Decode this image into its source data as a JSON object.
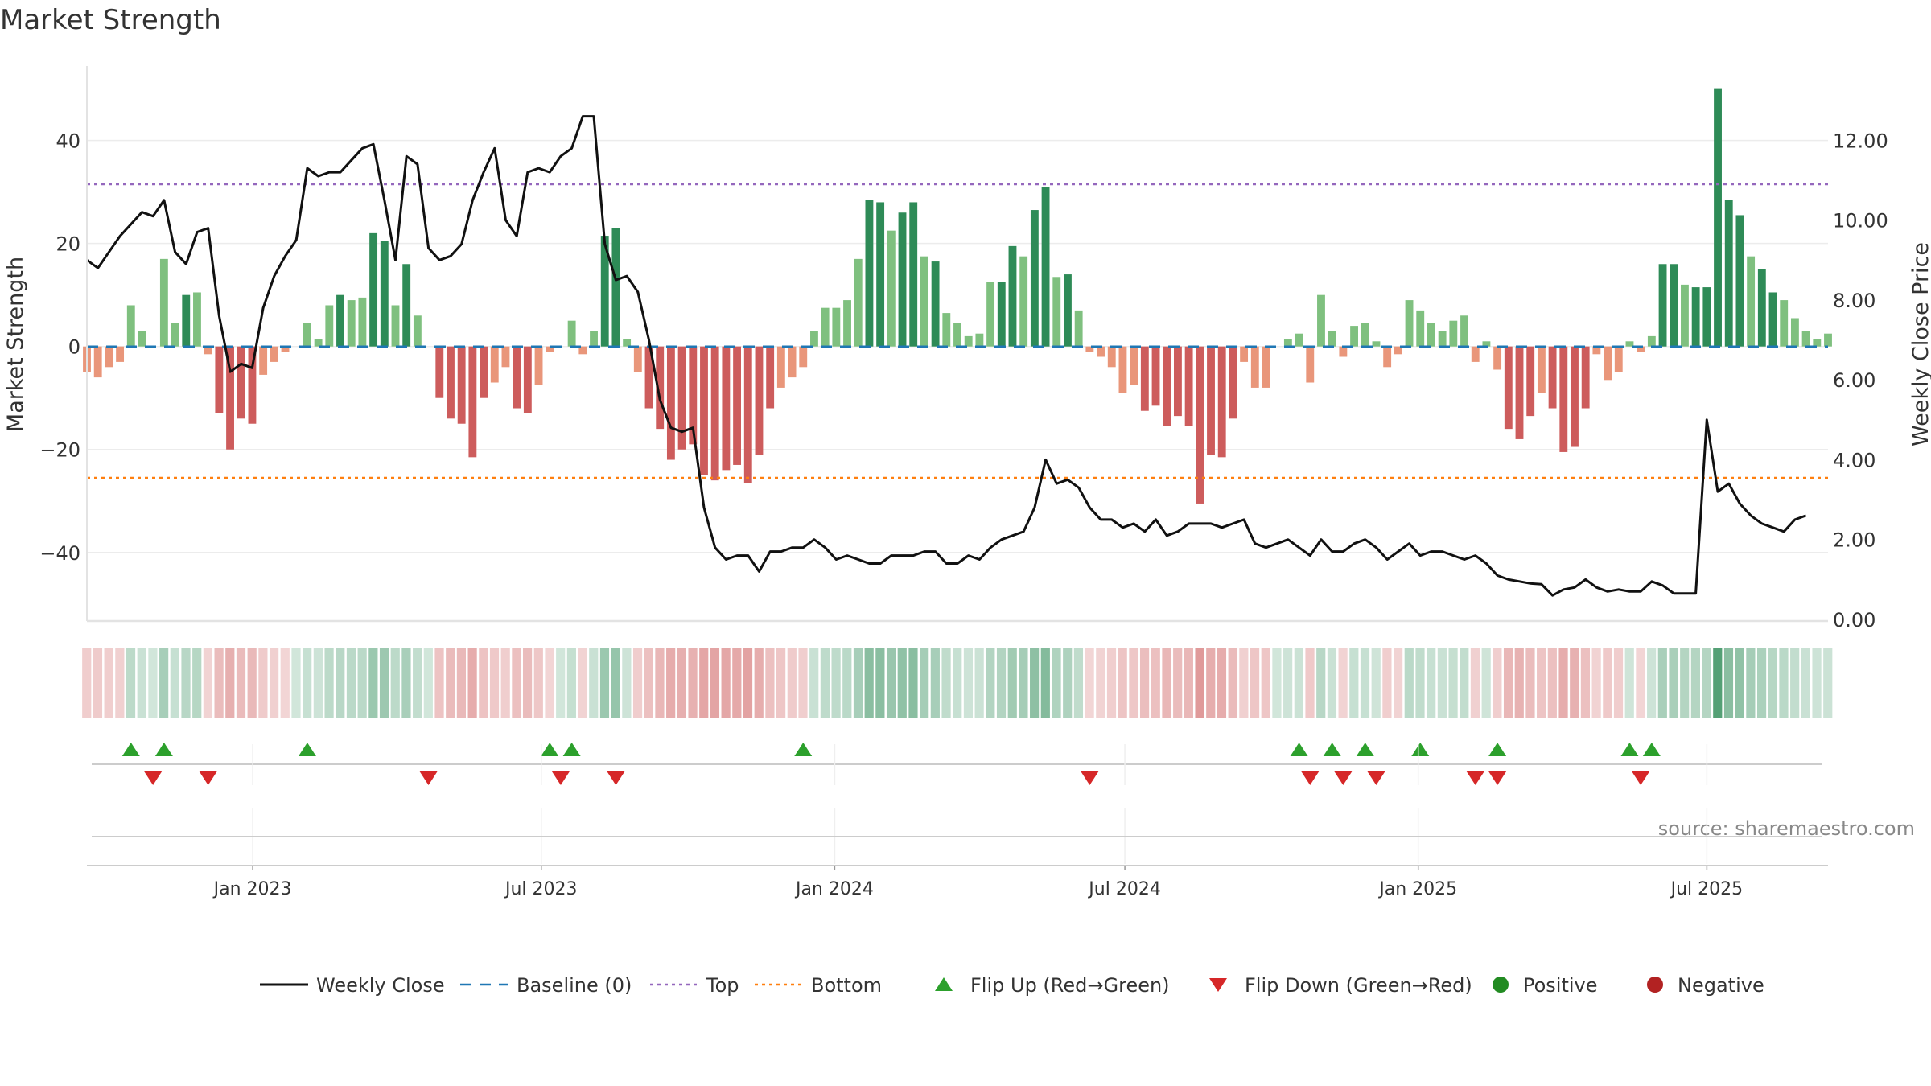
{
  "chart_data": {
    "type": "bar",
    "title": "Market Strength",
    "ylabel": "Market Strength",
    "y2label": "Weekly Close Price",
    "ylim": [
      -53,
      54
    ],
    "y2lim": [
      0,
      13.8
    ],
    "yticks": [
      -40,
      -20,
      0,
      20,
      40
    ],
    "yticklabels": [
      "−40",
      "−20",
      "0",
      "20",
      "40"
    ],
    "y2ticks": [
      0,
      2,
      4,
      6,
      8,
      10,
      12
    ],
    "y2ticklabels": [
      "0.00",
      "2.00",
      "4.00",
      "6.00",
      "8.00",
      "10.00",
      "12.00"
    ],
    "x_start": "2022-09-19",
    "x_end": "2025-09-15",
    "xticks": [
      "2023-01-01",
      "2023-07-01",
      "2024-01-01",
      "2024-07-01",
      "2025-01-01",
      "2025-07-01"
    ],
    "xticklabels": [
      "Jan 2023",
      "Jul 2023",
      "Jan 2024",
      "Jul 2024",
      "Jan 2025",
      "Jul 2025"
    ],
    "top_level": 31.5,
    "bottom_level": -25.5,
    "baseline": 0,
    "grid": true,
    "legend_placement": "bottom-center",
    "annotation": "source: sharemaestro.com",
    "colors": {
      "strong_pos": "#2e8b57",
      "weak_pos": "#7fc07f",
      "strong_neg": "#cd5c5c",
      "weak_neg": "#e9967a",
      "close_line": "#111111",
      "baseline": "#1f77b4",
      "top": "#9467bd",
      "bottom": "#ff7f0e",
      "flip_up": "#2ca02c",
      "flip_down": "#d62728",
      "positive": "#228b22",
      "negative": "#b22222"
    },
    "legend": [
      {
        "label": "Weekly Close",
        "kind": "line",
        "color": "#111111"
      },
      {
        "label": "Baseline (0)",
        "kind": "dash",
        "color": "#1f77b4"
      },
      {
        "label": "Top",
        "kind": "dot",
        "color": "#9467bd"
      },
      {
        "label": "Bottom",
        "kind": "dot",
        "color": "#ff7f0e"
      },
      {
        "label": "Flip Up (Red→Green)",
        "kind": "tri-up",
        "color": "#2ca02c"
      },
      {
        "label": "Flip Down (Green→Red)",
        "kind": "tri-down",
        "color": "#d62728"
      },
      {
        "label": "Positive",
        "kind": "circle",
        "color": "#228b22"
      },
      {
        "label": "Negative",
        "kind": "circle",
        "color": "#b22222"
      }
    ],
    "strength": [
      -5,
      -6,
      -4,
      -3,
      8,
      3,
      0,
      17,
      4.5,
      10,
      10.5,
      -1.5,
      -13,
      -20,
      -14,
      -15,
      -5.5,
      -3,
      -1,
      0,
      4.5,
      1.5,
      8,
      10,
      9,
      9.5,
      22,
      20.5,
      8,
      16,
      6,
      0,
      -10,
      -14,
      -15,
      -21.5,
      -10,
      -7,
      -4,
      -12,
      -13,
      -7.5,
      -1,
      0,
      5,
      -1.5,
      3,
      21.5,
      23,
      1.5,
      -5,
      -12,
      -16,
      -22,
      -20,
      -19,
      -25,
      -26,
      -24,
      -23,
      -26.5,
      -21,
      -12,
      -8,
      -6,
      -4,
      3,
      7.5,
      7.5,
      9,
      17,
      28.5,
      28,
      22.5,
      26,
      28,
      17.5,
      16.5,
      6.5,
      4.5,
      2,
      2.5,
      12.5,
      12.5,
      19.5,
      17.5,
      26.5,
      31,
      13.5,
      14,
      7,
      -1,
      -2,
      -4,
      -9,
      -7.5,
      -12.5,
      -11.5,
      -15.5,
      -13.5,
      -15.5,
      -30.5,
      -21,
      -21.5,
      -14,
      -3,
      -8,
      -8,
      0,
      1.5,
      2.5,
      -7,
      10,
      3,
      -2,
      4,
      4.5,
      1,
      -4,
      -1.5,
      9,
      7,
      4.5,
      3,
      5,
      6,
      -3,
      1,
      -4.5,
      -16,
      -18,
      -13.5,
      -9,
      -12,
      -20.5,
      -19.5,
      -12,
      -1.5,
      -6.5,
      -5,
      1,
      -1,
      2,
      16,
      16,
      12,
      11.5,
      11.5,
      50,
      28.5,
      25.5,
      17.5,
      15,
      10.5,
      9,
      5.5,
      3,
      1.5,
      2.5
    ],
    "close": [
      9.0,
      8.8,
      9.2,
      9.6,
      9.9,
      10.2,
      10.1,
      10.5,
      9.2,
      8.9,
      9.7,
      9.8,
      7.6,
      6.2,
      6.4,
      6.3,
      7.8,
      8.6,
      9.1,
      9.5,
      11.3,
      11.1,
      11.2,
      11.2,
      11.5,
      11.8,
      11.9,
      10.5,
      9.0,
      11.6,
      11.4,
      9.3,
      9.0,
      9.1,
      9.4,
      10.5,
      11.2,
      11.8,
      10.0,
      9.6,
      11.2,
      11.3,
      11.2,
      11.6,
      11.8,
      12.6,
      12.6,
      9.4,
      8.5,
      8.6,
      8.2,
      7.0,
      5.5,
      4.8,
      4.7,
      4.8,
      2.8,
      1.8,
      1.5,
      1.6,
      1.6,
      1.2,
      1.7,
      1.7,
      1.8,
      1.8,
      2.0,
      1.8,
      1.5,
      1.6,
      1.5,
      1.4,
      1.4,
      1.6,
      1.6,
      1.6,
      1.7,
      1.7,
      1.4,
      1.4,
      1.6,
      1.5,
      1.8,
      2.0,
      2.1,
      2.2,
      2.8,
      4.0,
      3.4,
      3.5,
      3.3,
      2.8,
      2.5,
      2.5,
      2.3,
      2.4,
      2.2,
      2.5,
      2.1,
      2.2,
      2.4,
      2.4,
      2.4,
      2.3,
      2.4,
      2.5,
      1.9,
      1.8,
      1.9,
      2.0,
      1.8,
      1.6,
      2.0,
      1.7,
      1.7,
      1.9,
      2.0,
      1.8,
      1.5,
      1.7,
      1.9,
      1.6,
      1.7,
      1.7,
      1.6,
      1.5,
      1.6,
      1.4,
      1.1,
      1.0,
      0.95,
      0.9,
      0.88,
      0.6,
      0.75,
      0.8,
      1.0,
      0.8,
      0.7,
      0.75,
      0.7,
      0.7,
      0.95,
      0.85,
      0.65,
      0.65,
      0.65,
      5.0,
      3.2,
      3.4,
      2.9,
      2.6,
      2.4,
      2.3,
      2.2,
      2.5,
      2.6
    ],
    "flip_up_idx": [
      4,
      7,
      20,
      42,
      44,
      65,
      110,
      113,
      116,
      121,
      128,
      140,
      142
    ],
    "flip_down_idx": [
      6,
      11,
      31,
      43,
      48,
      91,
      111,
      114,
      117,
      126,
      128,
      141
    ],
    "watermark": "source: sharemaestro.com"
  }
}
